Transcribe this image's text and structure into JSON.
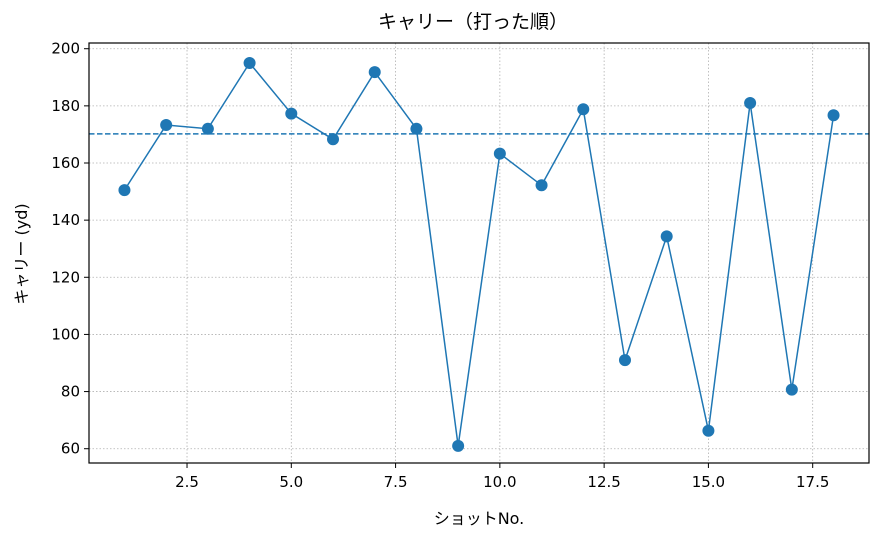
{
  "chart_data": {
    "type": "line",
    "title": "キャリー（打った順）",
    "xlabel": "ショットNo.",
    "ylabel": "キャリー (yd)",
    "xlim": [
      0.15,
      18.85
    ],
    "ylim": [
      55,
      202
    ],
    "xticks": [
      2.5,
      5.0,
      7.5,
      10.0,
      12.5,
      15.0,
      17.5
    ],
    "xtick_labels": [
      "2.5",
      "5.0",
      "7.5",
      "10.0",
      "12.5",
      "15.0",
      "17.5"
    ],
    "yticks": [
      60,
      80,
      100,
      120,
      140,
      160,
      180,
      200
    ],
    "ytick_labels": [
      "60",
      "80",
      "100",
      "120",
      "140",
      "160",
      "180",
      "200"
    ],
    "grid": true,
    "series": [
      {
        "color": "#1f77b4",
        "marker": "circle",
        "x": [
          1,
          2,
          3,
          4,
          5,
          6,
          7,
          8,
          9,
          10,
          11,
          12,
          13,
          14,
          15,
          16,
          17,
          18
        ],
        "values": [
          150.5,
          173.3,
          172.0,
          195.0,
          177.3,
          168.3,
          191.8,
          172.0,
          61.0,
          163.3,
          152.2,
          178.8,
          91.0,
          134.3,
          66.3,
          181.0,
          80.7,
          176.7
        ]
      }
    ],
    "reference_line": {
      "y": 170.2,
      "style": "dashed",
      "color": "#1f77b4"
    }
  }
}
